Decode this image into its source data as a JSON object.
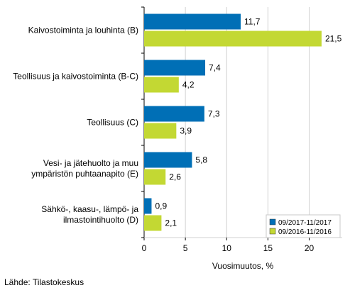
{
  "chart_data": {
    "type": "bar",
    "orientation": "horizontal",
    "categories": [
      "Kaivostoiminta ja louhinta (B)",
      "Teollisuus ja kaivostoiminta (B-C)",
      "Teollisuus (C)",
      "Vesi- ja jätehuolto ja muu ympäristön puhtaanapito (E)",
      "Sähkö-, kaasu-, lämpö- ja ilmastointihuolto (D)"
    ],
    "category_lines": [
      [
        "Kaivostoiminta ja louhinta (B)"
      ],
      [
        "Teollisuus ja kaivostoiminta (B-C)"
      ],
      [
        "Teollisuus (C)"
      ],
      [
        "Vesi- ja jätehuolto ja muu",
        "ympäristön puhtaanapito (E)"
      ],
      [
        "Sähkö-, kaasu-, lämpö- ja",
        "ilmastointihuolto (D)"
      ]
    ],
    "series": [
      {
        "name": "09/2017-11/2017",
        "color": "#006fb6",
        "values": [
          11.7,
          7.4,
          7.3,
          5.8,
          0.9
        ],
        "labels": [
          "11,7",
          "7,4",
          "7,3",
          "5,8",
          "0,9"
        ]
      },
      {
        "name": "09/2016-11/2016",
        "color": "#c3d833",
        "values": [
          21.5,
          4.2,
          3.9,
          2.6,
          2.1
        ],
        "labels": [
          "21,5",
          "4,2",
          "3,9",
          "2,6",
          "2,1"
        ]
      }
    ],
    "xlabel": "Vuosimuutos, %",
    "ylabel": "",
    "xlim": [
      0,
      24
    ],
    "xticks": [
      0,
      5,
      10,
      15,
      20
    ],
    "grid": "vertical",
    "legend_position": "bottom-right"
  },
  "source": "Lähde: Tilastokeskus"
}
